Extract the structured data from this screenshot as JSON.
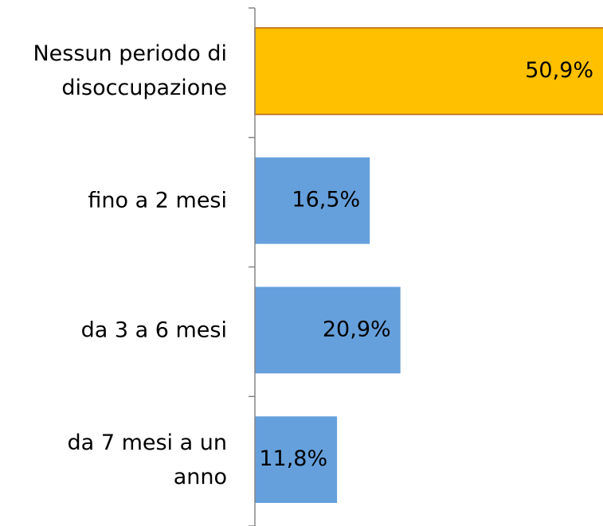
{
  "chart_data": {
    "type": "bar",
    "orientation": "horizontal",
    "categories": [
      "Nessun periodo di\ndisoccupazione",
      "fino a 2 mesi",
      "da 3 a 6 mesi",
      "da 7 mesi a un\nanno"
    ],
    "values": [
      50.9,
      16.5,
      20.9,
      11.8
    ],
    "value_labels": [
      "50,9%",
      "16,5%",
      "20,9%",
      "11,8%"
    ],
    "colors": [
      "#ffc000",
      "#65a0dc",
      "#65a0dc",
      "#65a0dc"
    ],
    "xlim": [
      0,
      50
    ]
  }
}
